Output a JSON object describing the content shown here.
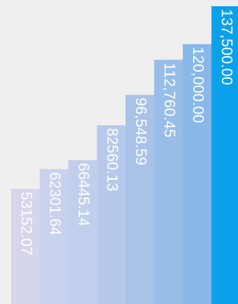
{
  "chart_data": {
    "type": "bar",
    "title": "",
    "xlabel": "",
    "ylabel": "",
    "ylim": [
      0,
      137500
    ],
    "grid": false,
    "legend": "none",
    "values": [
      53152.07,
      62301.64,
      66445.14,
      82560.13,
      96548.59,
      112760.45,
      120000.0,
      137500.0
    ],
    "labels": [
      "53152.07",
      "62301.64",
      "66445.14",
      "82560.13",
      "96,548.59",
      "112,760.45",
      "120,000.00",
      "137,500.00"
    ],
    "colors": [
      "#d5d5ec",
      "#c8d1ee",
      "#c2cfec",
      "#b7c9ea",
      "#a8c2e8",
      "#97bde8",
      "#87b8e8",
      "#0ba0ea"
    ],
    "label_colors": [
      "#ffffff",
      "#ffffff",
      "#ffffff",
      "#ffffff",
      "#ffffff",
      "#ffffff",
      "#ffffff",
      "#ffffff"
    ]
  }
}
